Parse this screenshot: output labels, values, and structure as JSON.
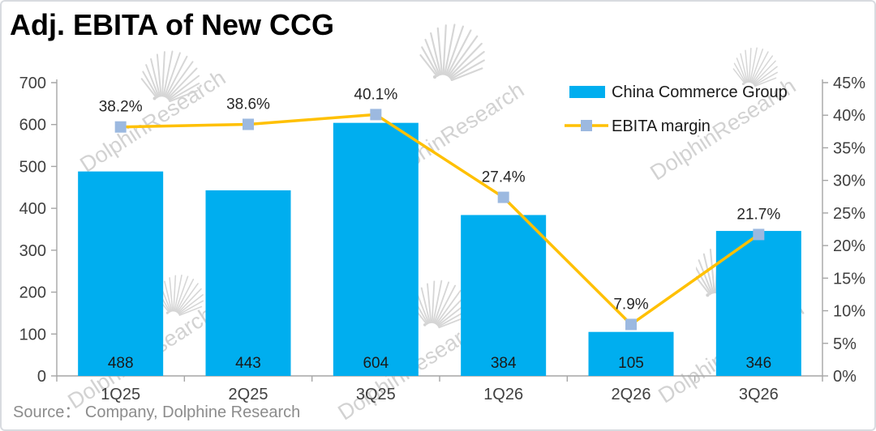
{
  "page": {
    "title": "Adj. EBITA of New CCG",
    "source": "Source： Company, Dolphine Research"
  },
  "watermark": {
    "text": "DolphinResearch"
  },
  "colors": {
    "bar": "#00AEEF",
    "line": "#FFC000",
    "marker": "#9CB9E0",
    "axis": "#A6A6A6",
    "tick_label": "#404040",
    "data_label": "#262626",
    "bar_label": "#1A1A1A",
    "legend_text": "#1A1A1A",
    "watermark": "#D2D2D2"
  },
  "chart_data": {
    "type": "bar+line",
    "title": "Adj. EBITA of New CCG",
    "categories": [
      "1Q25",
      "2Q25",
      "3Q25",
      "1Q26",
      "2Q26",
      "3Q26"
    ],
    "series": [
      {
        "name": "China Commerce Group",
        "type": "bar",
        "axis": "left",
        "values": [
          488,
          443,
          604,
          384,
          105,
          346
        ],
        "labels": [
          "488",
          "443",
          "604",
          "384",
          "105",
          "346"
        ]
      },
      {
        "name": "EBITA margin",
        "type": "line",
        "axis": "right",
        "values": [
          38.2,
          38.6,
          40.1,
          27.4,
          7.9,
          21.7
        ],
        "labels": [
          "38.2%",
          "38.6%",
          "40.1%",
          "27.4%",
          "7.9%",
          "21.7%"
        ]
      }
    ],
    "left_axis": {
      "min": 0,
      "max": 700,
      "step": 100,
      "ticks": [
        "0",
        "100",
        "200",
        "300",
        "400",
        "500",
        "600",
        "700"
      ]
    },
    "right_axis": {
      "min": 0,
      "max": 45,
      "step": 5,
      "ticks": [
        "0%",
        "5%",
        "10%",
        "15%",
        "20%",
        "25%",
        "30%",
        "35%",
        "40%",
        "45%"
      ]
    },
    "legend_position": "top-right",
    "grid": false
  }
}
